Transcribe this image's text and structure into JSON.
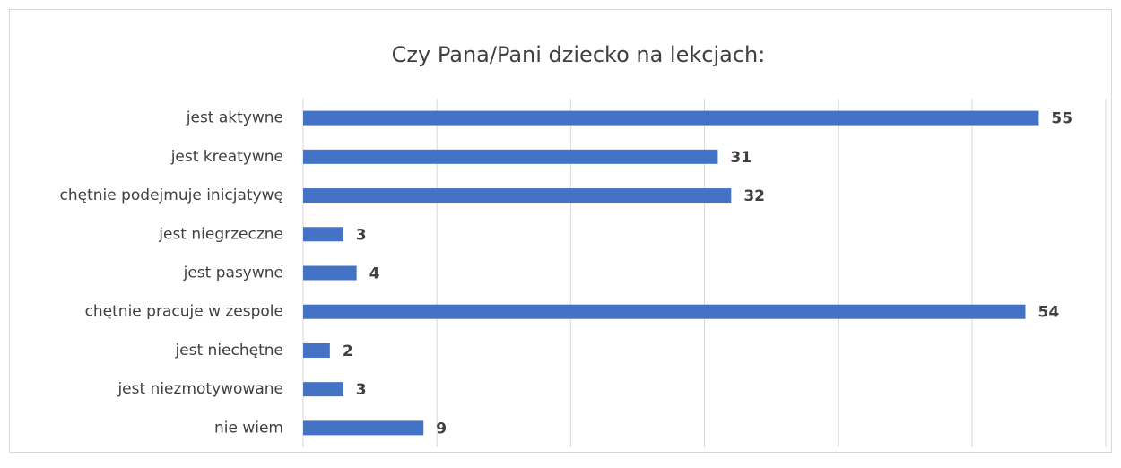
{
  "chart_data": {
    "type": "bar",
    "orientation": "horizontal",
    "title": "Czy Pana/Pani dziecko na lekcjach:",
    "categories": [
      "jest aktywne",
      "jest kreatywne",
      "chętnie podejmuje inicjatywę",
      "jest niegrzeczne",
      "jest pasywne",
      "chętnie pracuje w zespole",
      "jest niechętne",
      "jest niezmotywowane",
      "nie wiem"
    ],
    "values": [
      55,
      31,
      32,
      3,
      4,
      54,
      2,
      3,
      9
    ],
    "color": "#4472c4",
    "xlim": [
      0,
      60
    ],
    "xticks": [
      0,
      10,
      20,
      30,
      40,
      50,
      60
    ],
    "grid": true
  }
}
